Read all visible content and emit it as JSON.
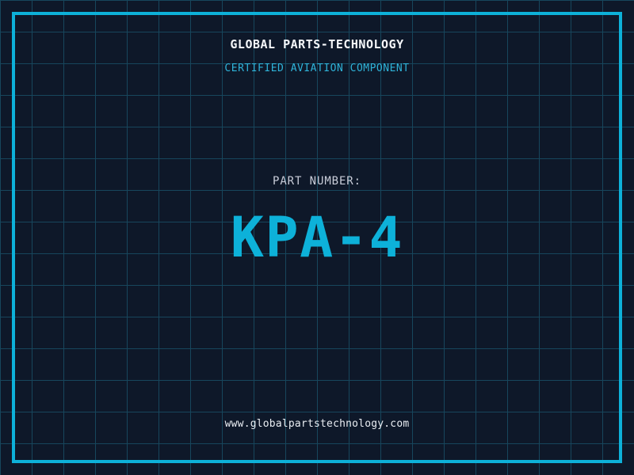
{
  "colors": {
    "background": "#0e1829",
    "grid_line": "#17465c",
    "frame": "#0db1d9",
    "header_text": "#f5f7fa",
    "subtitle_text": "#2fb3d9",
    "part_label_text": "#c9cdd9",
    "part_number_text": "#0db1d9",
    "url_text": "#e9edf2"
  },
  "label_plate": {
    "header": "GLOBAL PARTS-TECHNOLOGY",
    "subtitle": "CERTIFIED AVIATION COMPONENT",
    "part_label": "PART NUMBER:",
    "part_number": "KPA-4",
    "url": "www.globalpartstechnology.com"
  }
}
